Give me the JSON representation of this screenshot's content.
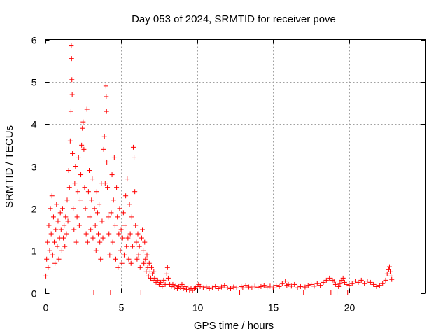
{
  "chart_data": {
    "type": "scatter",
    "title": "Day 053 of 2024, SRMTID for receiver pove",
    "xlabel": "GPS time / hours",
    "ylabel": "SRMTID / TECUs",
    "xlim": [
      0,
      25
    ],
    "ylim": [
      0,
      6
    ],
    "xticks": [
      0,
      5,
      10,
      15,
      20
    ],
    "yticks": [
      0,
      1,
      2,
      3,
      4,
      5,
      6
    ],
    "xtick_labels": [
      "0",
      "5",
      "10",
      "15",
      "20"
    ],
    "ytick_labels": [
      "0",
      "1",
      "2",
      "3",
      "4",
      "5",
      "6"
    ],
    "grid": true,
    "marker": "+",
    "color": "#ff0000",
    "series": [
      {
        "name": "SRMTID",
        "points": [
          [
            0.05,
            0.4
          ],
          [
            0.1,
            0.8
          ],
          [
            0.15,
            1.2
          ],
          [
            0.2,
            0.6
          ],
          [
            0.25,
            1.6
          ],
          [
            0.3,
            1.0
          ],
          [
            0.35,
            2.0
          ],
          [
            0.4,
            1.4
          ],
          [
            0.45,
            2.3
          ],
          [
            0.5,
            0.9
          ],
          [
            0.55,
            1.8
          ],
          [
            0.6,
            1.2
          ],
          [
            0.65,
            0.7
          ],
          [
            0.7,
            1.5
          ],
          [
            0.75,
            2.1
          ],
          [
            0.8,
            1.1
          ],
          [
            0.85,
            1.7
          ],
          [
            0.9,
            0.8
          ],
          [
            0.95,
            1.3
          ],
          [
            1.0,
            1.9
          ],
          [
            1.05,
            1.5
          ],
          [
            1.1,
            1.0
          ],
          [
            1.15,
            2.0
          ],
          [
            1.2,
            1.3
          ],
          [
            1.25,
            1.6
          ],
          [
            1.3,
            1.1
          ],
          [
            1.35,
            1.8
          ],
          [
            1.4,
            1.4
          ],
          [
            1.45,
            2.2
          ],
          [
            1.5,
            1.7
          ],
          [
            1.55,
            2.9
          ],
          [
            1.6,
            2.5
          ],
          [
            1.65,
            3.6
          ],
          [
            1.7,
            4.3
          ],
          [
            1.72,
            5.85
          ],
          [
            1.74,
            5.55
          ],
          [
            1.76,
            5.05
          ],
          [
            1.78,
            4.7
          ],
          [
            1.8,
            3.3
          ],
          [
            1.85,
            2.0
          ],
          [
            1.9,
            1.5
          ],
          [
            1.95,
            2.6
          ],
          [
            2.0,
            3.0
          ],
          [
            2.05,
            1.2
          ],
          [
            2.1,
            1.8
          ],
          [
            2.15,
            2.4
          ],
          [
            2.2,
            3.2
          ],
          [
            2.25,
            1.6
          ],
          [
            2.3,
            2.2
          ],
          [
            2.35,
            2.8
          ],
          [
            2.4,
            3.5
          ],
          [
            2.45,
            3.9
          ],
          [
            2.5,
            4.05
          ],
          [
            2.55,
            3.4
          ],
          [
            2.6,
            2.5
          ],
          [
            2.65,
            2.0
          ],
          [
            2.7,
            1.4
          ],
          [
            2.75,
            4.35
          ],
          [
            2.8,
            1.2
          ],
          [
            2.85,
            2.4
          ],
          [
            2.9,
            2.9
          ],
          [
            2.95,
            1.8
          ],
          [
            3.0,
            1.5
          ],
          [
            3.05,
            2.2
          ],
          [
            3.1,
            2.7
          ],
          [
            3.15,
            1.3
          ],
          [
            3.2,
            0.0
          ],
          [
            3.25,
            2.0
          ],
          [
            3.3,
            1.6
          ],
          [
            3.35,
            1.0
          ],
          [
            3.4,
            2.4
          ],
          [
            3.45,
            1.9
          ],
          [
            3.5,
            1.4
          ],
          [
            3.55,
            2.1
          ],
          [
            3.6,
            1.2
          ],
          [
            3.65,
            0.8
          ],
          [
            3.7,
            2.6
          ],
          [
            3.75,
            1.7
          ],
          [
            3.8,
            1.3
          ],
          [
            3.85,
            3.4
          ],
          [
            3.9,
            3.7
          ],
          [
            3.95,
            2.6
          ],
          [
            4.0,
            4.9
          ],
          [
            4.02,
            4.65
          ],
          [
            4.04,
            4.3
          ],
          [
            4.06,
            3.1
          ],
          [
            4.1,
            2.5
          ],
          [
            4.15,
            1.8
          ],
          [
            4.2,
            1.4
          ],
          [
            4.25,
            0.9
          ],
          [
            4.3,
            0.0
          ],
          [
            4.35,
            1.9
          ],
          [
            4.4,
            2.8
          ],
          [
            4.45,
            1.2
          ],
          [
            4.5,
            2.2
          ],
          [
            4.55,
            3.2
          ],
          [
            4.6,
            1.6
          ],
          [
            4.65,
            0.8
          ],
          [
            4.7,
            2.5
          ],
          [
            4.75,
            1.8
          ],
          [
            4.8,
            0.6
          ],
          [
            4.85,
            1.4
          ],
          [
            4.9,
            2.0
          ],
          [
            4.95,
            1.0
          ],
          [
            5.0,
            1.5
          ],
          [
            5.05,
            0.7
          ],
          [
            5.1,
            1.3
          ],
          [
            5.15,
            1.9
          ],
          [
            5.2,
            0.9
          ],
          [
            5.25,
            1.6
          ],
          [
            5.3,
            2.3
          ],
          [
            5.35,
            1.1
          ],
          [
            5.4,
            2.7
          ],
          [
            5.45,
            1.3
          ],
          [
            5.5,
            0.8
          ],
          [
            5.55,
            2.1
          ],
          [
            5.6,
            1.4
          ],
          [
            5.65,
            0.7
          ],
          [
            5.7,
            1.8
          ],
          [
            5.75,
            1.1
          ],
          [
            5.8,
            3.45
          ],
          [
            5.85,
            3.2
          ],
          [
            5.9,
            2.4
          ],
          [
            5.95,
            1.6
          ],
          [
            6.0,
            1.2
          ],
          [
            6.05,
            0.8
          ],
          [
            6.1,
            1.4
          ],
          [
            6.15,
            0.9
          ],
          [
            6.2,
            1.1
          ],
          [
            6.25,
            0.6
          ],
          [
            6.3,
            0.0
          ],
          [
            6.35,
            1.3
          ],
          [
            6.4,
            1.5
          ],
          [
            6.45,
            1.0
          ],
          [
            6.5,
            0.7
          ],
          [
            6.55,
            1.2
          ],
          [
            6.6,
            0.8
          ],
          [
            6.65,
            0.5
          ],
          [
            6.7,
            0.9
          ],
          [
            6.75,
            0.6
          ],
          [
            6.8,
            0.4
          ],
          [
            6.85,
            0.7
          ],
          [
            6.9,
            0.5
          ],
          [
            6.95,
            0.35
          ],
          [
            7.0,
            0.6
          ],
          [
            7.05,
            0.45
          ],
          [
            7.1,
            0.3
          ],
          [
            7.15,
            0.5
          ],
          [
            7.2,
            0.35
          ],
          [
            7.3,
            0.25
          ],
          [
            7.4,
            0.3
          ],
          [
            7.5,
            0.2
          ],
          [
            7.6,
            0.25
          ],
          [
            7.7,
            0.15
          ],
          [
            7.8,
            0.3
          ],
          [
            7.9,
            0.2
          ],
          [
            8.0,
            0.45
          ],
          [
            8.05,
            0.6
          ],
          [
            8.1,
            0.35
          ],
          [
            8.2,
            0.2
          ],
          [
            8.3,
            0.15
          ],
          [
            8.4,
            0.2
          ],
          [
            8.5,
            0.12
          ],
          [
            8.6,
            0.18
          ],
          [
            8.7,
            0.1
          ],
          [
            8.8,
            0.15
          ],
          [
            8.9,
            0.12
          ],
          [
            9.0,
            0.2
          ],
          [
            9.1,
            0.1
          ],
          [
            9.2,
            0.15
          ],
          [
            9.3,
            0.08
          ],
          [
            9.4,
            0.12
          ],
          [
            9.5,
            0.07
          ],
          [
            9.6,
            0.1
          ],
          [
            9.7,
            0.06
          ],
          [
            9.8,
            0.1
          ],
          [
            9.9,
            0.12
          ],
          [
            10.0,
            0.15
          ],
          [
            10.1,
            0.2
          ],
          [
            10.2,
            0.15
          ],
          [
            10.4,
            0.12
          ],
          [
            10.6,
            0.14
          ],
          [
            10.8,
            0.1
          ],
          [
            11.0,
            0.12
          ],
          [
            11.2,
            0.15
          ],
          [
            11.4,
            0.1
          ],
          [
            11.6,
            0.14
          ],
          [
            11.8,
            0.18
          ],
          [
            12.0,
            0.12
          ],
          [
            12.2,
            0.1
          ],
          [
            12.4,
            0.14
          ],
          [
            12.6,
            0.12
          ],
          [
            12.8,
            0.0
          ],
          [
            12.9,
            0.15
          ],
          [
            13.0,
            0.12
          ],
          [
            13.2,
            0.18
          ],
          [
            13.4,
            0.14
          ],
          [
            13.6,
            0.12
          ],
          [
            13.8,
            0.16
          ],
          [
            14.0,
            0.13
          ],
          [
            14.2,
            0.15
          ],
          [
            14.4,
            0.18
          ],
          [
            14.6,
            0.14
          ],
          [
            14.8,
            0.16
          ],
          [
            15.0,
            0.12
          ],
          [
            15.2,
            0.18
          ],
          [
            15.4,
            0.15
          ],
          [
            15.6,
            0.22
          ],
          [
            15.8,
            0.28
          ],
          [
            15.9,
            0.18
          ],
          [
            16.0,
            0.2
          ],
          [
            16.2,
            0.16
          ],
          [
            16.4,
            0.2
          ],
          [
            16.6,
            0.12
          ],
          [
            16.8,
            0.15
          ],
          [
            17.0,
            0.0
          ],
          [
            17.1,
            0.14
          ],
          [
            17.3,
            0.18
          ],
          [
            17.5,
            0.2
          ],
          [
            17.7,
            0.16
          ],
          [
            17.9,
            0.22
          ],
          [
            18.1,
            0.18
          ],
          [
            18.3,
            0.25
          ],
          [
            18.5,
            0.3
          ],
          [
            18.7,
            0.35
          ],
          [
            18.8,
            0.0
          ],
          [
            18.9,
            0.3
          ],
          [
            19.0,
            0.28
          ],
          [
            19.1,
            0.2
          ],
          [
            19.2,
            0.0
          ],
          [
            19.3,
            0.15
          ],
          [
            19.4,
            0.22
          ],
          [
            19.5,
            0.3
          ],
          [
            19.6,
            0.35
          ],
          [
            19.7,
            0.25
          ],
          [
            19.8,
            0.2
          ],
          [
            19.9,
            0.0
          ],
          [
            20.0,
            0.18
          ],
          [
            20.2,
            0.22
          ],
          [
            20.4,
            0.28
          ],
          [
            20.6,
            0.25
          ],
          [
            20.8,
            0.3
          ],
          [
            21.0,
            0.22
          ],
          [
            21.2,
            0.28
          ],
          [
            21.4,
            0.25
          ],
          [
            21.6,
            0.2
          ],
          [
            21.8,
            0.15
          ],
          [
            22.0,
            0.18
          ],
          [
            22.2,
            0.22
          ],
          [
            22.4,
            0.3
          ],
          [
            22.5,
            0.45
          ],
          [
            22.6,
            0.55
          ],
          [
            22.65,
            0.62
          ],
          [
            22.7,
            0.5
          ],
          [
            22.75,
            0.4
          ],
          [
            22.8,
            0.32
          ]
        ]
      }
    ]
  }
}
